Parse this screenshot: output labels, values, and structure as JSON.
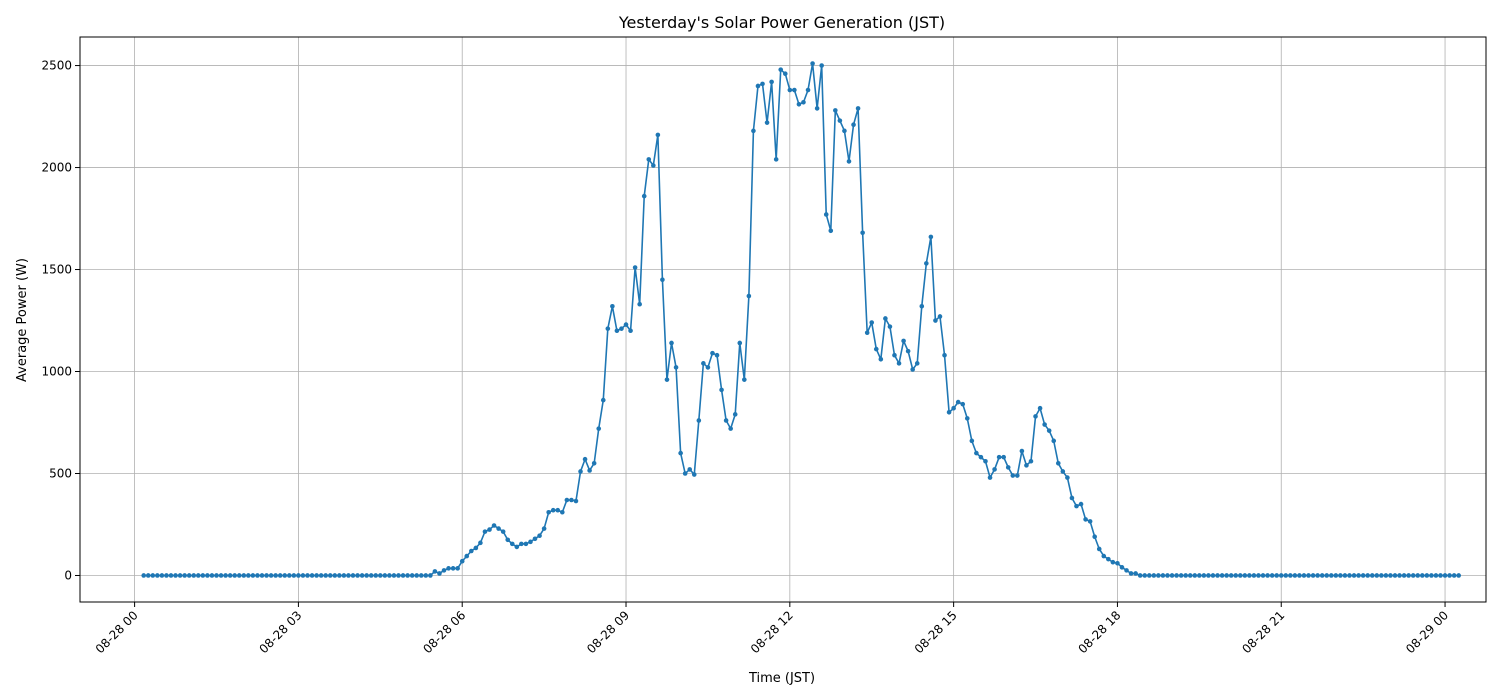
{
  "chart_data": {
    "type": "line",
    "title": "Yesterday's Solar Power Generation (JST)",
    "xlabel": "Time (JST)",
    "ylabel": "Average Power (W)",
    "x_axis": {
      "ticks": [
        "08-28 00",
        "08-28 03",
        "08-28 06",
        "08-28 09",
        "08-28 12",
        "08-28 15",
        "08-28 18",
        "08-28 21",
        "08-29 00"
      ],
      "range": [
        "08-27 23:00",
        "08-29 00:45"
      ]
    },
    "y_axis": {
      "ticks": [
        0,
        500,
        1000,
        1500,
        2000,
        2500
      ],
      "range": [
        -130,
        2640
      ]
    },
    "grid": true,
    "color": "#1f77b4",
    "series": [
      {
        "x_start": "08-28 00:10",
        "x_step_minutes": 5,
        "values": [
          0,
          0,
          0,
          0,
          0,
          0,
          0,
          0,
          0,
          0,
          0,
          0,
          0,
          0,
          0,
          0,
          0,
          0,
          0,
          0,
          0,
          0,
          0,
          0,
          0,
          0,
          0,
          0,
          0,
          0,
          0,
          0,
          0,
          0,
          0,
          0,
          0,
          0,
          0,
          0,
          0,
          0,
          0,
          0,
          0,
          0,
          0,
          0,
          0,
          0,
          0,
          0,
          0,
          0,
          0,
          0,
          0,
          0,
          0,
          0,
          0,
          0,
          0,
          0,
          20,
          10,
          25,
          35,
          35,
          35,
          70,
          95,
          120,
          135,
          160,
          215,
          225,
          245,
          230,
          215,
          175,
          155,
          140,
          155,
          155,
          165,
          180,
          195,
          230,
          310,
          320,
          320,
          310,
          370,
          370,
          365,
          510,
          570,
          515,
          550,
          720,
          860,
          1210,
          1320,
          1200,
          1210,
          1230,
          1200,
          1510,
          1330,
          1860,
          2040,
          2010,
          2160,
          1450,
          960,
          1140,
          1020,
          600,
          500,
          520,
          495,
          760,
          1040,
          1020,
          1090,
          1080,
          910,
          760,
          720,
          790,
          1140,
          960,
          1370,
          2180,
          2400,
          2410,
          2220,
          2420,
          2040,
          2480,
          2460,
          2380,
          2380,
          2310,
          2320,
          2380,
          2510,
          2290,
          2500,
          1770,
          1690,
          2280,
          2230,
          2180,
          2030,
          2210,
          2290,
          1680,
          1190,
          1240,
          1110,
          1060,
          1260,
          1220,
          1080,
          1040,
          1150,
          1100,
          1010,
          1040,
          1320,
          1530,
          1660,
          1250,
          1270,
          1080,
          800,
          820,
          850,
          840,
          770,
          660,
          600,
          580,
          560,
          480,
          520,
          580,
          580,
          530,
          490,
          490,
          610,
          540,
          560,
          780,
          820,
          740,
          710,
          660,
          550,
          510,
          480,
          380,
          340,
          350,
          275,
          265,
          190,
          130,
          95,
          80,
          65,
          60,
          40,
          25,
          10,
          10,
          0,
          0,
          0,
          0,
          0,
          0,
          0,
          0,
          0,
          0,
          0,
          0,
          0,
          0,
          0,
          0,
          0,
          0,
          0,
          0,
          0,
          0,
          0,
          0,
          0,
          0,
          0,
          0,
          0,
          0,
          0,
          0,
          0,
          0,
          0,
          0,
          0,
          0,
          0,
          0,
          0,
          0,
          0,
          0,
          0,
          0,
          0,
          0,
          0,
          0,
          0,
          0,
          0,
          0,
          0,
          0,
          0,
          0,
          0,
          0,
          0,
          0,
          0,
          0,
          0,
          0,
          0,
          0,
          0,
          0,
          0
        ]
      }
    ]
  }
}
